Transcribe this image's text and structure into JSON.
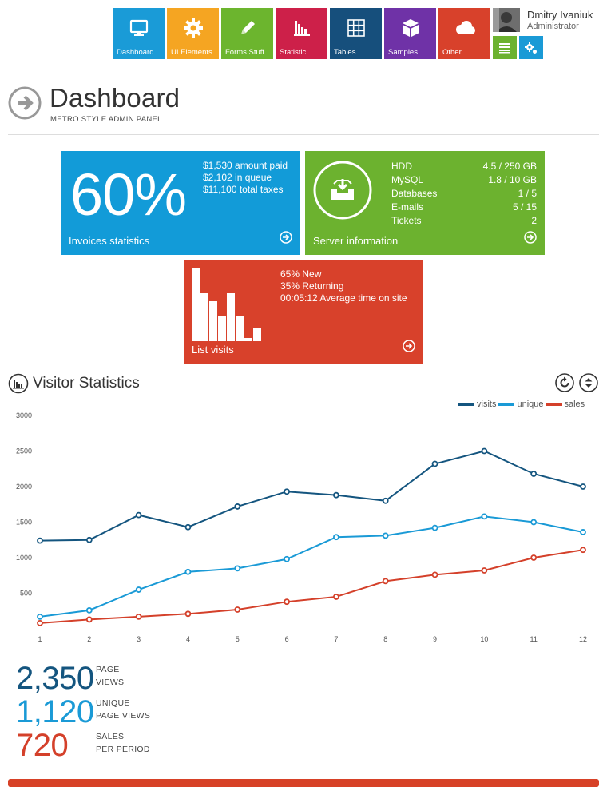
{
  "nav": [
    {
      "label": "Dashboard",
      "icon": "monitor-icon",
      "color": "#1a9bd7"
    },
    {
      "label": "UI Elements",
      "icon": "gear-icon",
      "color": "#f5a522"
    },
    {
      "label": "Forms Stuff",
      "icon": "pencil-icon",
      "color": "#6cb52e"
    },
    {
      "label": "Statistic",
      "icon": "bar-chart-icon",
      "color": "#cd2049"
    },
    {
      "label": "Tables",
      "icon": "grid-icon",
      "color": "#164f7c"
    },
    {
      "label": "Samples",
      "icon": "box-icon",
      "color": "#6f32a7"
    },
    {
      "label": "Other",
      "icon": "cloud-icon",
      "color": "#d8412b"
    }
  ],
  "user": {
    "name": "Dmitry Ivaniuk",
    "role": "Administrator"
  },
  "header": {
    "title": "Dashboard",
    "subtitle": "METRO STYLE ADMIN PANEL"
  },
  "invoices": {
    "percent": "60%",
    "lines": [
      "$1,530 amount paid",
      "$2,102 in queue",
      "$11,100 total taxes"
    ],
    "footer": "Invoices statistics",
    "color": "#129bd8"
  },
  "server": {
    "rows": [
      {
        "k": "HDD",
        "v": "4.5 / 250 GB"
      },
      {
        "k": "MySQL",
        "v": "1.8 / 10 GB"
      },
      {
        "k": "Databases",
        "v": "1 / 5"
      },
      {
        "k": "E-mails",
        "v": "5 / 15"
      },
      {
        "k": "Tickets",
        "v": "2"
      }
    ],
    "footer": "Server information",
    "color": "#6cb22f"
  },
  "visits": {
    "lines": [
      "65% New",
      "35% Returning",
      "00:05:12 Average time on site"
    ],
    "footer": "List visits",
    "bars": [
      92,
      60,
      50,
      32,
      60,
      32,
      4,
      16
    ],
    "color": "#d8412b"
  },
  "visitor_stats": {
    "title": "Visitor Statistics"
  },
  "chart_data": {
    "type": "line",
    "x": [
      1,
      2,
      3,
      4,
      5,
      6,
      7,
      8,
      9,
      10,
      11,
      12
    ],
    "ylim": [
      0,
      3000
    ],
    "yticks": [
      500,
      1000,
      1500,
      2000,
      2500,
      3000
    ],
    "legend_position": "top-right",
    "grid": false,
    "series": [
      {
        "name": "visits",
        "color": "#14557f",
        "values": [
          1240,
          1250,
          1600,
          1430,
          1720,
          1930,
          1880,
          1800,
          2320,
          2500,
          2180,
          2000
        ]
      },
      {
        "name": "unique",
        "color": "#1a9ad6",
        "values": [
          170,
          260,
          550,
          800,
          850,
          980,
          1290,
          1310,
          1420,
          1580,
          1500,
          1360
        ]
      },
      {
        "name": "sales",
        "color": "#d4402a",
        "values": [
          80,
          130,
          170,
          210,
          270,
          380,
          450,
          670,
          760,
          820,
          1000,
          1110
        ]
      }
    ]
  },
  "kpis": [
    {
      "value": "2,350",
      "line1": "PAGE",
      "line2": "VIEWS",
      "color": "#14557f"
    },
    {
      "value": "1,120",
      "line1": "UNIQUE",
      "line2": "PAGE VIEWS",
      "color": "#1a9ad6"
    },
    {
      "value": "720",
      "line1": "SALES",
      "line2": "PER PERIOD",
      "color": "#d4402a"
    }
  ]
}
